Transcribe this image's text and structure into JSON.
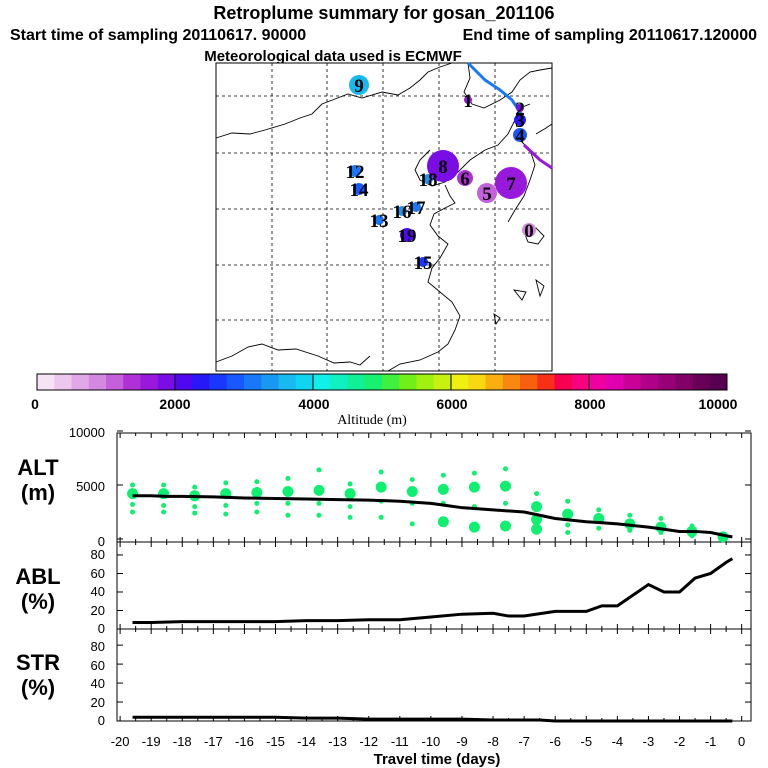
{
  "title": "Retroplume summary for gosan_201106",
  "subtitle_start": "Start time of sampling 20110617. 90000",
  "subtitle_end": "End time of sampling 20110617.120000",
  "subtitle_met": "Meteorological data used is ECMWF",
  "colorbar": {
    "label": "Altitude (m)",
    "ticks": [
      "0",
      "2000",
      "4000",
      "6000",
      "8000",
      "10000"
    ],
    "colors": [
      "#f6e4f6",
      "#ecc8ec",
      "#e0a8e6",
      "#d488e0",
      "#c460dc",
      "#b030d8",
      "#9818dc",
      "#7a0ce6",
      "#5008f0",
      "#2818f8",
      "#1838ff",
      "#1858ff",
      "#1878f8",
      "#1898f0",
      "#18b8f0",
      "#10d4f0",
      "#10f0e8",
      "#10f0c0",
      "#10f098",
      "#18f070",
      "#40f040",
      "#70f018",
      "#a0f010",
      "#c8f010",
      "#f0f010",
      "#f8d810",
      "#f8b010",
      "#f88810",
      "#f86010",
      "#f83018",
      "#f80050",
      "#f80080",
      "#f000a0",
      "#e000b0",
      "#c80098",
      "#b00088",
      "#980078",
      "#800068",
      "#680058",
      "#580050"
    ]
  },
  "map_markers": [
    {
      "label": "9",
      "color": "#18b8f0"
    },
    {
      "label": "8",
      "color": "#7a0ce6"
    },
    {
      "label": "7",
      "color": "#9818dc"
    },
    {
      "label": "6",
      "color": "#b030d8"
    },
    {
      "label": "5",
      "color": "#c460dc"
    },
    {
      "label": "12",
      "color": "#1878f8"
    },
    {
      "label": "14",
      "color": "#1858ff"
    },
    {
      "label": "13",
      "color": "#1878f8"
    },
    {
      "label": "16",
      "color": "#1898f0"
    },
    {
      "label": "17",
      "color": "#1878f8"
    },
    {
      "label": "18",
      "color": "#1898f0"
    },
    {
      "label": "19",
      "color": "#5008f0"
    },
    {
      "label": "15",
      "color": "#1838ff"
    },
    {
      "label": "0",
      "color": "#d488e0"
    },
    {
      "label": "4",
      "color": "#1858ff"
    },
    {
      "label": "3",
      "color": "#2818f8"
    },
    {
      "label": "2",
      "color": "#7a0ce6"
    },
    {
      "label": "1",
      "color": "#9818dc"
    }
  ],
  "panels": {
    "alt": {
      "label_top": "ALT",
      "label_bottom": "(m)"
    },
    "abl": {
      "label_top": "ABL",
      "label_bottom": "(%)"
    },
    "str": {
      "label_top": "STR",
      "label_bottom": "(%)"
    }
  },
  "chart_data": [
    {
      "type": "line",
      "name": "ALT",
      "ylabel": "ALT (m)",
      "ylim": [
        0,
        10000
      ],
      "yticks": [
        "10000",
        "5000",
        "0"
      ],
      "x": [
        -19.6,
        -19,
        -18.5,
        -18,
        -17,
        -16,
        -15,
        -14,
        -13,
        -12,
        -11.5,
        -11,
        -10,
        -9.5,
        -9,
        -8,
        -7,
        -6.5,
        -6,
        -5,
        -4.5,
        -4,
        -3,
        -2.5,
        -2,
        -1.5,
        -1,
        -0.5,
        -0.3
      ],
      "mean": [
        4000,
        4000,
        3950,
        3950,
        3900,
        3800,
        3750,
        3700,
        3650,
        3600,
        3550,
        3500,
        3300,
        3100,
        2900,
        2700,
        2500,
        2200,
        1900,
        1600,
        1500,
        1400,
        1100,
        900,
        700,
        700,
        600,
        300,
        200
      ],
      "clusters": [
        {
          "x": -19.6,
          "y": [
            5000,
            4200,
            3200,
            2500
          ]
        },
        {
          "x": -18.6,
          "y": [
            5000,
            4200,
            3100,
            2500
          ]
        },
        {
          "x": -17.6,
          "y": [
            4800,
            4000,
            3000,
            2400
          ]
        },
        {
          "x": -16.6,
          "y": [
            5200,
            4200,
            3100,
            2300
          ]
        },
        {
          "x": -15.6,
          "y": [
            5300,
            4300,
            3300,
            2500
          ]
        },
        {
          "x": -14.6,
          "y": [
            5600,
            4400,
            3300,
            2200
          ]
        },
        {
          "x": -13.6,
          "y": [
            6400,
            4500,
            3300,
            2200
          ]
        },
        {
          "x": -12.6,
          "y": [
            5100,
            4200,
            3000,
            2000
          ]
        },
        {
          "x": -11.6,
          "y": [
            6200,
            4800,
            3500,
            2000
          ]
        },
        {
          "x": -10.6,
          "y": [
            5500,
            4400,
            3300,
            1400
          ]
        },
        {
          "x": -9.6,
          "y": [
            5900,
            4600,
            3300,
            1600
          ]
        },
        {
          "x": -8.6,
          "y": [
            6100,
            4800,
            3000,
            1100
          ]
        },
        {
          "x": -7.6,
          "y": [
            6500,
            4900,
            3300,
            1200
          ]
        },
        {
          "x": -6.6,
          "y": [
            4200,
            3000,
            1800,
            900
          ]
        },
        {
          "x": -5.6,
          "y": [
            3500,
            2300,
            1300,
            600
          ]
        },
        {
          "x": -4.6,
          "y": [
            2700,
            1900,
            1000
          ]
        },
        {
          "x": -3.6,
          "y": [
            2200,
            1400,
            800
          ]
        },
        {
          "x": -2.6,
          "y": [
            1900,
            1100,
            600
          ]
        },
        {
          "x": -1.6,
          "y": [
            1200,
            700,
            300
          ]
        },
        {
          "x": -0.6,
          "y": [
            400,
            200
          ]
        }
      ]
    },
    {
      "type": "line",
      "name": "ABL",
      "ylabel": "ABL (%)",
      "ylim": [
        0,
        90
      ],
      "yticks": [
        "80",
        "60",
        "40",
        "20",
        "0"
      ],
      "x": [
        -19.6,
        -19,
        -18,
        -17,
        -16,
        -15,
        -14,
        -13,
        -12,
        -11,
        -10,
        -9,
        -8,
        -7.5,
        -7,
        -6,
        -5,
        -4.5,
        -4,
        -3,
        -2.5,
        -2,
        -1.5,
        -1,
        -0.5,
        -0.3
      ],
      "y": [
        7,
        7,
        8,
        8,
        8,
        8,
        9,
        9,
        10,
        10,
        13,
        16,
        17,
        14,
        14,
        19,
        19,
        25,
        25,
        48,
        40,
        40,
        55,
        60,
        72,
        76
      ]
    },
    {
      "type": "line",
      "name": "STR",
      "ylabel": "STR (%)",
      "ylim": [
        0,
        90
      ],
      "yticks": [
        "80",
        "60",
        "40",
        "20",
        "0"
      ],
      "x": [
        -19.6,
        -19,
        -18,
        -17,
        -16,
        -15,
        -14,
        -13,
        -12,
        -11,
        -10,
        -9,
        -8,
        -7,
        -6.5,
        -6,
        -5,
        -4,
        -3,
        -2,
        -1,
        -0.3
      ],
      "y": [
        4,
        4,
        4,
        4,
        4,
        4,
        3,
        3,
        2,
        2,
        2,
        2,
        1,
        1,
        1,
        0,
        0,
        0,
        0,
        0,
        0,
        0
      ]
    },
    {
      "type": "axis",
      "xlabel": "Travel time (days)",
      "xticks": [
        "-20",
        "-19",
        "-18",
        "-17",
        "-16",
        "-15",
        "-14",
        "-13",
        "-12",
        "-11",
        "-10",
        "-9",
        "-8",
        "-7",
        "-6",
        "-5",
        "-4",
        "-3",
        "-2",
        "-1",
        "0"
      ]
    }
  ]
}
